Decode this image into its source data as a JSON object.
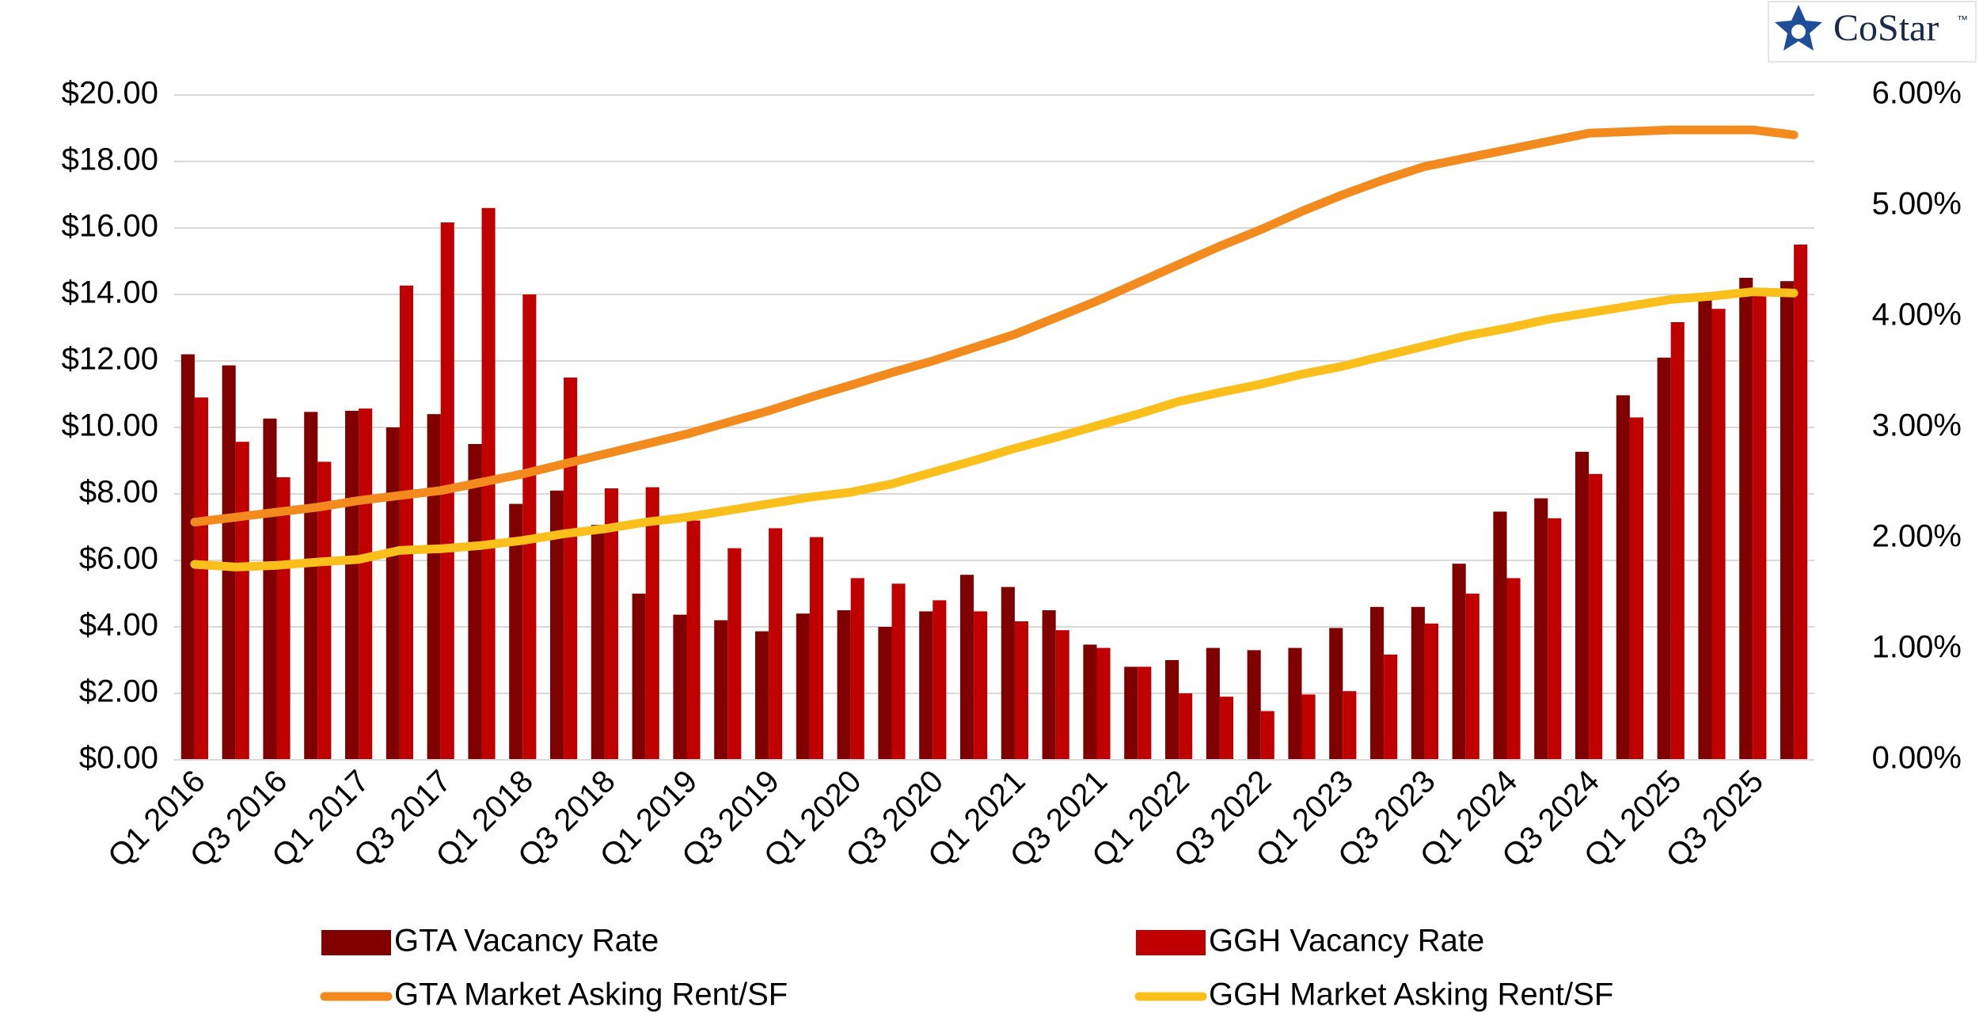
{
  "chart_data": {
    "type": "bar",
    "logo": "CoStar",
    "logo_tm": "™",
    "categories": [
      "Q1 2016",
      null,
      "Q3 2016",
      null,
      "Q1 2017",
      null,
      "Q3 2017",
      null,
      "Q1 2018",
      null,
      "Q3 2018",
      null,
      "Q1 2019",
      null,
      "Q3 2019",
      null,
      "Q1 2020",
      null,
      "Q3 2020",
      null,
      "Q1 2021",
      null,
      "Q3 2021",
      null,
      "Q1 2022",
      null,
      "Q3 2022",
      null,
      "Q1 2023",
      null,
      "Q3 2023",
      null,
      "Q1 2024",
      null,
      "Q3 2024",
      null,
      "Q1 2025",
      null,
      "Q3 2025",
      null
    ],
    "series": [
      {
        "name": "GTA Vacancy Rate",
        "type": "bar",
        "axis": "y2",
        "color": "#800000",
        "values": [
          3.66,
          3.56,
          3.08,
          3.14,
          3.15,
          3.0,
          3.12,
          2.85,
          2.31,
          2.43,
          2.12,
          1.5,
          1.31,
          1.26,
          1.16,
          1.32,
          1.35,
          1.2,
          1.34,
          1.67,
          1.56,
          1.35,
          1.04,
          0.84,
          0.9,
          1.01,
          0.99,
          1.01,
          1.19,
          1.38,
          1.38,
          1.77,
          2.24,
          2.36,
          2.78,
          3.29,
          3.63,
          4.16,
          4.35,
          4.32
        ]
      },
      {
        "name": "GGH Vacancy Rate",
        "type": "bar",
        "axis": "y2",
        "color": "#c00000",
        "values": [
          3.27,
          2.87,
          2.55,
          2.69,
          3.17,
          4.28,
          4.85,
          4.98,
          4.2,
          3.45,
          2.45,
          2.46,
          2.16,
          1.91,
          2.09,
          2.01,
          1.64,
          1.59,
          1.44,
          1.34,
          1.25,
          1.17,
          1.01,
          0.84,
          0.6,
          0.57,
          0.44,
          0.59,
          0.62,
          0.95,
          1.23,
          1.5,
          1.64,
          2.18,
          2.58,
          3.09,
          3.95,
          4.07,
          4.26,
          4.65
        ]
      },
      {
        "name": "GTA Market Asking Rent/SF",
        "type": "line",
        "color": "#f28a1e",
        "values": [
          7.15,
          7.3,
          7.45,
          7.6,
          7.8,
          7.95,
          8.1,
          8.35,
          8.6,
          8.9,
          9.2,
          9.5,
          9.8,
          10.15,
          10.5,
          10.9,
          11.27,
          11.65,
          12.0,
          12.4,
          12.8,
          13.3,
          13.8,
          14.35,
          14.9,
          15.45,
          15.95,
          16.5,
          17.0,
          17.45,
          17.85,
          18.1,
          18.35,
          18.6,
          18.85,
          18.9,
          18.95,
          18.95,
          18.95,
          18.8
        ]
      },
      {
        "name": "GGH Market Asking Rent/SF",
        "type": "line",
        "color": "#fbbf1c",
        "values": [
          5.88,
          5.8,
          5.85,
          5.95,
          6.03,
          6.3,
          6.35,
          6.45,
          6.6,
          6.8,
          6.95,
          7.15,
          7.3,
          7.5,
          7.7,
          7.9,
          8.05,
          8.3,
          8.65,
          9.0,
          9.37,
          9.7,
          10.05,
          10.4,
          10.78,
          11.05,
          11.3,
          11.6,
          11.84,
          12.15,
          12.45,
          12.75,
          12.98,
          13.25,
          13.45,
          13.65,
          13.85,
          13.95,
          14.08,
          14.04
        ]
      }
    ],
    "ylim": [
      0,
      20
    ],
    "yticks": [
      {
        "value": 0,
        "label": "$0.00"
      },
      {
        "value": 2,
        "label": "$2.00"
      },
      {
        "value": 4,
        "label": "$4.00"
      },
      {
        "value": 6,
        "label": "$6.00"
      },
      {
        "value": 8,
        "label": "$8.00"
      },
      {
        "value": 10,
        "label": "$10.00"
      },
      {
        "value": 12,
        "label": "$12.00"
      },
      {
        "value": 14,
        "label": "$14.00"
      },
      {
        "value": 16,
        "label": "$16.00"
      },
      {
        "value": 18,
        "label": "$18.00"
      },
      {
        "value": 20,
        "label": "$20.00"
      }
    ],
    "y2lim": [
      0,
      6
    ],
    "y2ticks": [
      {
        "value": 0,
        "label": "0.00%"
      },
      {
        "value": 1,
        "label": "1.00%"
      },
      {
        "value": 2,
        "label": "2.00%"
      },
      {
        "value": 3,
        "label": "3.00%"
      },
      {
        "value": 4,
        "label": "4.00%"
      },
      {
        "value": 5,
        "label": "5.00%"
      },
      {
        "value": 6,
        "label": "6.00%"
      }
    ],
    "grid": true,
    "legend": "bottom"
  }
}
